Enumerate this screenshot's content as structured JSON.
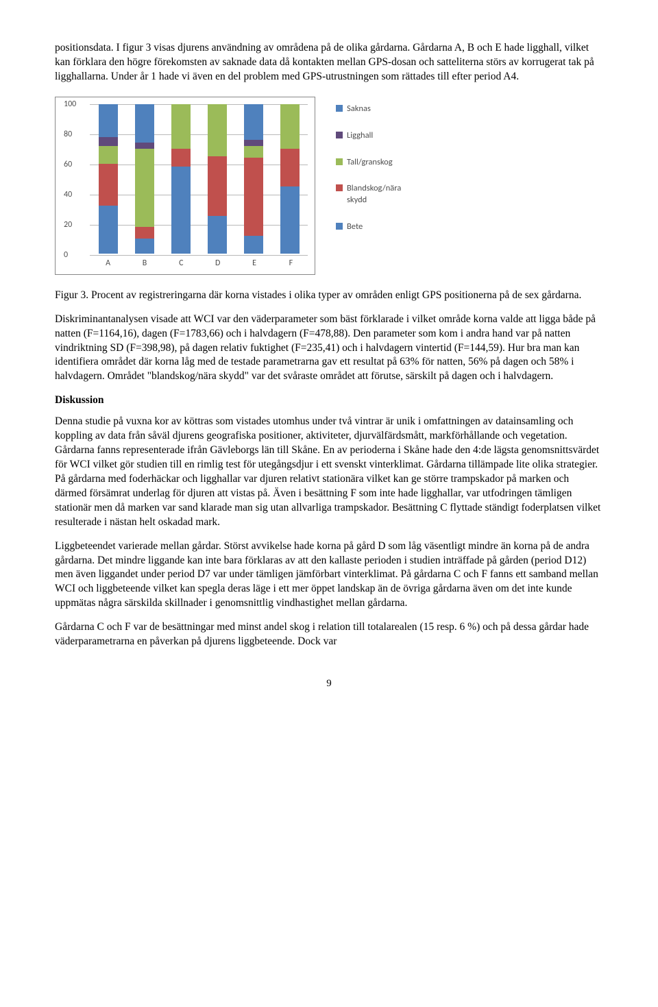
{
  "para1": "positionsdata. I figur 3 visas djurens användning av områdena på de olika gårdarna. Gårdarna A, B och E hade ligghall, vilket kan förklara den högre förekomsten av saknade data då kontakten mellan GPS-dosan och satteliterna störs av korrugerat tak på ligghallarna. Under år 1 hade vi även en del problem med GPS-utrustningen som rättades till efter period A4.",
  "chart": {
    "type": "stacked-bar",
    "ylim": [
      0,
      100
    ],
    "ytick_labels": [
      "0",
      "20",
      "40",
      "60",
      "80",
      "100"
    ],
    "ytick_positions": [
      0,
      20,
      40,
      60,
      80,
      100
    ],
    "categories": [
      "A",
      "B",
      "C",
      "D",
      "E",
      "F"
    ],
    "series_order": [
      "Bete",
      "Blandskog/nära skydd",
      "Tall/granskog",
      "Ligghall",
      "Saknas"
    ],
    "colors": {
      "Saknas": "#4f81bd",
      "Ligghall": "#604a7b",
      "Tall/granskog": "#9bbb59",
      "Blandskog/nära skydd": "#c0504d",
      "Bete": "#4f81bd"
    },
    "background_color": "#ffffff",
    "grid_color": "#b8b8b8",
    "axis_font_size": 12,
    "axis_font_color": "#4d4d4d",
    "data": {
      "A": {
        "Bete": 32,
        "Blandskog/nära skydd": 28,
        "Tall/granskog": 12,
        "Ligghall": 6,
        "Saknas": 22
      },
      "B": {
        "Bete": 10,
        "Blandskog/nära skydd": 8,
        "Tall/granskog": 52,
        "Ligghall": 4,
        "Saknas": 26
      },
      "C": {
        "Bete": 58,
        "Blandskog/nära skydd": 12,
        "Tall/granskog": 30,
        "Ligghall": 0,
        "Saknas": 0
      },
      "D": {
        "Bete": 25,
        "Blandskog/nära skydd": 40,
        "Tall/granskog": 35,
        "Ligghall": 0,
        "Saknas": 0
      },
      "E": {
        "Bete": 12,
        "Blandskog/nära skydd": 52,
        "Tall/granskog": 8,
        "Ligghall": 4,
        "Saknas": 24
      },
      "F": {
        "Bete": 45,
        "Blandskog/nära skydd": 25,
        "Tall/granskog": 30,
        "Ligghall": 0,
        "Saknas": 0
      }
    },
    "legend": [
      {
        "label": "Saknas",
        "color": "#4f81bd"
      },
      {
        "label": "Ligghall",
        "color": "#604a7b"
      },
      {
        "label": "Tall/granskog",
        "color": "#9bbb59"
      },
      {
        "label": "Blandskog/nära\nskydd",
        "color": "#c0504d"
      },
      {
        "label": "Bete",
        "color": "#4f81bd"
      }
    ]
  },
  "caption": "Figur 3. Procent av registreringarna där korna vistades i olika typer av områden enligt GPS positionerna på de sex gårdarna.",
  "para2": "Diskriminantanalysen visade att WCI var den väderparameter som bäst förklarade i vilket område korna valde att ligga både på natten (F=1164,16), dagen (F=1783,66) och i halvdagern (F=478,88). Den parameter som kom i andra hand var på natten vindriktning SD (F=398,98), på dagen relativ fuktighet (F=235,41) och i halvdagern vintertid (F=144,59). Hur bra man kan identifiera området där korna låg med de testade parametrarna gav ett resultat på 63% för natten, 56% på dagen och 58% i halvdagern. Området \"blandskog/nära skydd\" var det svåraste området att förutse, särskilt på dagen och i halvdagern.",
  "discussion_heading": "Diskussion",
  "para3": "Denna studie på vuxna kor av köttras som vistades utomhus under två vintrar är unik i omfattningen av datainsamling och koppling av data från såväl djurens geografiska positioner, aktiviteter, djurvälfärdsmått, markförhållande och vegetation. Gårdarna fanns representerade ifrån Gävleborgs län till Skåne. En av perioderna i Skåne hade den 4:de lägsta genomsnittsvärdet för WCI vilket gör studien till en rimlig test för utegångsdjur i ett svenskt vinterklimat. Gårdarna tillämpade lite olika strategier. På gårdarna med foderhäckar och ligghallar var djuren relativt stationära vilket kan ge större trampskador på marken och därmed försämrat underlag för djuren att vistas på. Även i besättning F som inte hade ligghallar, var utfodringen tämligen stationär men då marken var sand klarade man sig utan allvarliga trampskador. Besättning C flyttade ständigt foderplatsen vilket resulterade i nästan helt oskadad mark.",
  "para4": "Liggbeteendet varierade mellan gårdar. Störst avvikelse hade korna på gård D som låg väsentligt mindre än korna på de andra gårdarna. Det mindre liggande kan inte bara förklaras av att den kallaste perioden i studien inträffade på gården (period D12) men även liggandet under period D7 var under tämligen jämförbart vinterklimat. På gårdarna C och F fanns ett samband mellan WCI och liggbeteende vilket kan spegla deras läge i ett mer öppet landskap än de övriga gårdarna även om det inte kunde uppmätas några särskilda skillnader i genomsnittlig vindhastighet mellan gårdarna.",
  "para5": "Gårdarna C och F var de besättningar med minst andel skog i relation till totalarealen (15 resp. 6 %) och på dessa gårdar hade väderparametrarna en påverkan på djurens liggbeteende. Dock var",
  "page_num": "9"
}
